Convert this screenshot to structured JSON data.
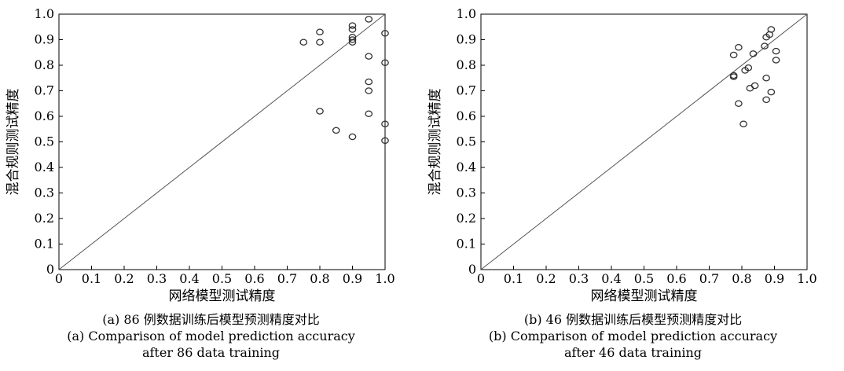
{
  "chart_data": [
    {
      "id": "a",
      "type": "scatter",
      "xlabel": "网络模型测试精度",
      "ylabel": "混合规则测试精度",
      "xlim": [
        0,
        1.0
      ],
      "ylim": [
        0,
        1.0
      ],
      "xticks": [
        "0",
        "0.1",
        "0.2",
        "0.3",
        "0.4",
        "0.5",
        "0.6",
        "0.7",
        "0.8",
        "0.9",
        "1.0"
      ],
      "yticks": [
        "0",
        "0.1",
        "0.2",
        "0.3",
        "0.4",
        "0.5",
        "0.6",
        "0.7",
        "0.8",
        "0.9",
        "1.0"
      ],
      "reference_line": "y = x",
      "grid": false,
      "points": [
        [
          0.75,
          0.89
        ],
        [
          0.8,
          0.93
        ],
        [
          0.8,
          0.89
        ],
        [
          0.8,
          0.62
        ],
        [
          0.85,
          0.545
        ],
        [
          0.9,
          0.955
        ],
        [
          0.9,
          0.94
        ],
        [
          0.9,
          0.91
        ],
        [
          0.9,
          0.9
        ],
        [
          0.9,
          0.89
        ],
        [
          0.9,
          0.52
        ],
        [
          0.95,
          0.98
        ],
        [
          0.95,
          0.835
        ],
        [
          0.95,
          0.735
        ],
        [
          0.95,
          0.7
        ],
        [
          0.95,
          0.61
        ],
        [
          1.0,
          0.925
        ],
        [
          1.0,
          0.81
        ],
        [
          1.0,
          0.57
        ],
        [
          1.0,
          0.505
        ]
      ],
      "caption_cn": "(a) 86 例数据训练后模型预测精度对比",
      "caption_en_1": "(a) Comparison of model prediction accuracy",
      "caption_en_2": "after 86 data training"
    },
    {
      "id": "b",
      "type": "scatter",
      "xlabel": "网络模型测试精度",
      "ylabel": "混合规则测试精度",
      "xlim": [
        0,
        1.0
      ],
      "ylim": [
        0,
        1.0
      ],
      "xticks": [
        "0",
        "0.1",
        "0.2",
        "0.3",
        "0.4",
        "0.5",
        "0.6",
        "0.7",
        "0.8",
        "0.9",
        "1.0"
      ],
      "yticks": [
        "0",
        "0.1",
        "0.2",
        "0.3",
        "0.4",
        "0.5",
        "0.6",
        "0.7",
        "0.8",
        "0.9",
        "1.0"
      ],
      "reference_line": "y = x",
      "grid": false,
      "points": [
        [
          0.775,
          0.84
        ],
        [
          0.79,
          0.87
        ],
        [
          0.775,
          0.76
        ],
        [
          0.775,
          0.755
        ],
        [
          0.79,
          0.65
        ],
        [
          0.805,
          0.57
        ],
        [
          0.81,
          0.78
        ],
        [
          0.82,
          0.79
        ],
        [
          0.825,
          0.71
        ],
        [
          0.835,
          0.845
        ],
        [
          0.84,
          0.72
        ],
        [
          0.87,
          0.875
        ],
        [
          0.875,
          0.91
        ],
        [
          0.875,
          0.75
        ],
        [
          0.875,
          0.665
        ],
        [
          0.885,
          0.92
        ],
        [
          0.89,
          0.94
        ],
        [
          0.89,
          0.695
        ],
        [
          0.905,
          0.855
        ],
        [
          0.905,
          0.82
        ]
      ],
      "caption_cn": "(b) 46 例数据训练后模型预测精度对比",
      "caption_en_1": "(b) Comparison of model prediction accuracy",
      "caption_en_2": "after 46 data training"
    }
  ]
}
